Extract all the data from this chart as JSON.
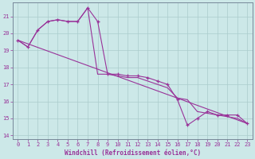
{
  "xlabel": "Windchill (Refroidissement éolien,°C)",
  "bg_color": "#cce8e8",
  "line_color": "#993399",
  "ylim": [
    13.8,
    21.8
  ],
  "xlim": [
    -0.5,
    23.5
  ],
  "yticks": [
    14,
    15,
    16,
    17,
    18,
    19,
    20,
    21
  ],
  "xticks": [
    0,
    1,
    2,
    3,
    4,
    5,
    6,
    7,
    8,
    9,
    10,
    11,
    12,
    13,
    14,
    15,
    16,
    17,
    18,
    19,
    20,
    21,
    22,
    23
  ],
  "series1_x": [
    0,
    1,
    2,
    3,
    4,
    5,
    6,
    7,
    8,
    9,
    10,
    11,
    12,
    13,
    14,
    15,
    16,
    17,
    18,
    19,
    20,
    21,
    22,
    23
  ],
  "series1_y": [
    19.6,
    19.2,
    20.2,
    20.7,
    20.8,
    20.7,
    20.7,
    21.5,
    20.7,
    17.6,
    17.6,
    17.5,
    17.5,
    17.4,
    17.2,
    17.0,
    16.1,
    14.6,
    15.0,
    15.4,
    15.2,
    15.2,
    15.2,
    14.7
  ],
  "envelope_x": [
    0,
    1,
    2,
    3,
    4,
    5,
    6,
    7,
    8,
    9,
    10,
    11,
    12,
    13,
    14,
    15,
    16,
    17,
    18,
    19,
    20,
    21,
    22,
    23
  ],
  "envelope_y": [
    19.6,
    19.2,
    20.2,
    20.7,
    20.8,
    20.7,
    20.7,
    21.5,
    17.6,
    17.6,
    17.5,
    17.4,
    17.4,
    17.2,
    17.0,
    16.8,
    16.2,
    16.1,
    15.4,
    15.3,
    15.2,
    15.1,
    15.0,
    14.7
  ],
  "trend_x": [
    0,
    23
  ],
  "trend_y": [
    19.6,
    14.7
  ]
}
